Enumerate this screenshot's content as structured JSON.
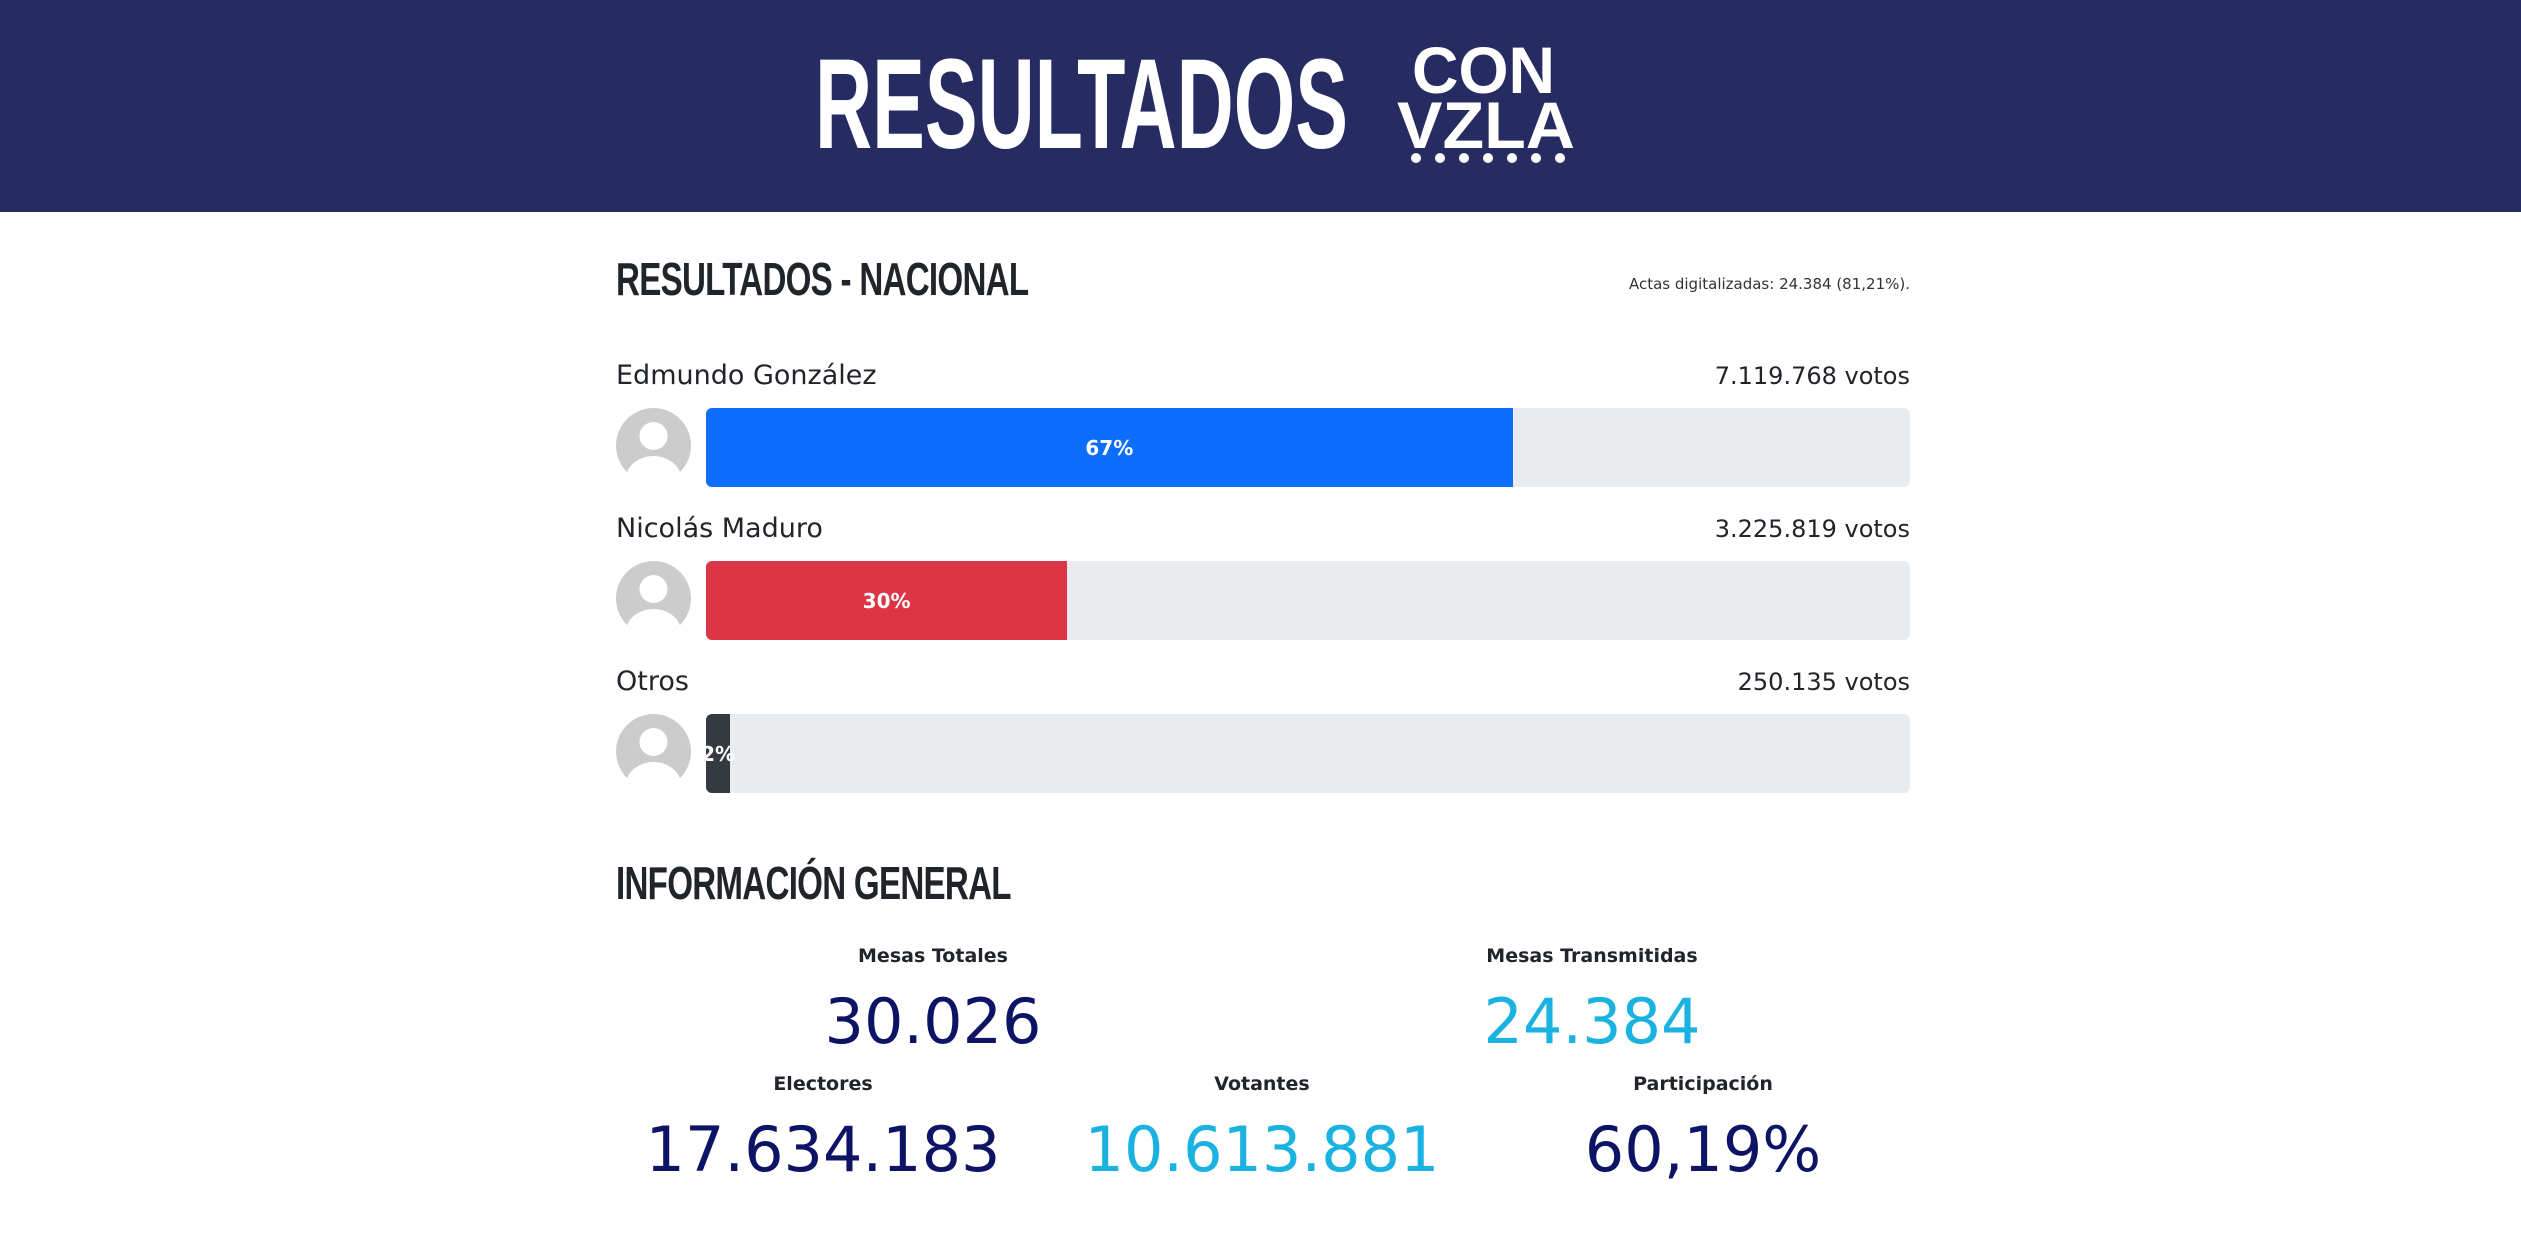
{
  "header": {
    "title": "RESULTADOS",
    "logo_top": "CON",
    "logo_bottom": "VZLA"
  },
  "results": {
    "title": "RESULTADOS - NACIONAL",
    "note": "Actas digitalizadas: 24.384 (81,21%).",
    "candidates": [
      {
        "name": "Edmundo González",
        "votes": "7.119.768 votos",
        "percent": {
          "value": 67,
          "label": "67%"
        },
        "color": "#0d6efd"
      },
      {
        "name": "Nicolás Maduro",
        "votes": "3.225.819 votos",
        "percent": {
          "value": 30,
          "label": "30%"
        },
        "color": "#dc3545"
      },
      {
        "name": "Otros",
        "votes": "250.135 votos",
        "percent": {
          "value": 2,
          "label": "2%"
        },
        "color": "#343a40"
      }
    ]
  },
  "general": {
    "title": "INFORMACIÓN GENERAL",
    "stats": [
      {
        "label": "Mesas Totales",
        "value": "30.026"
      },
      {
        "label": "Mesas Transmitidas",
        "value": "24.384"
      },
      {
        "label": "Electores",
        "value": "17.634.183"
      },
      {
        "label": "Votantes",
        "value": "10.613.881"
      },
      {
        "label": "Participación",
        "value": "60,19%"
      }
    ]
  }
}
